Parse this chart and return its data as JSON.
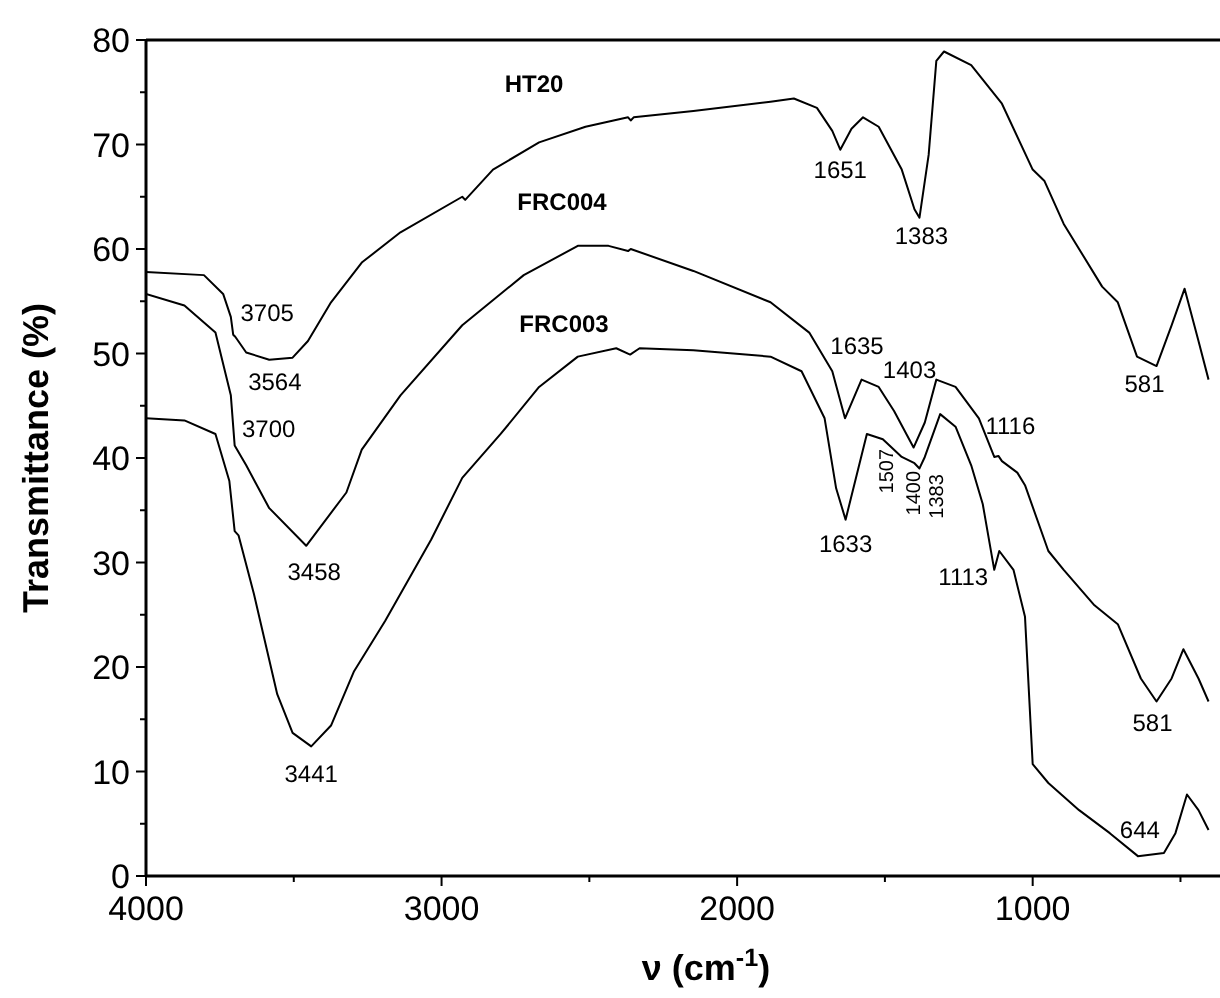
{
  "chart_data": {
    "type": "line",
    "xlabel": "ν (cm$^{-1}$)",
    "ylabel": "Transmittance  (%)",
    "xlim": [
      4000,
      373
    ],
    "ylim": [
      0,
      80
    ],
    "xticks": [
      4000,
      {
        "value": 3500,
        "label": null
      },
      3000,
      {
        "value": 2500,
        "label": null
      },
      2000,
      {
        "value": 1500,
        "label": null
      },
      1000,
      {
        "value": 500,
        "label": null
      }
    ],
    "yticks": [
      0,
      {
        "value": 5,
        "label": null
      },
      10,
      {
        "value": 15,
        "label": null
      },
      20,
      {
        "value": 25,
        "label": null
      },
      30,
      {
        "value": 35,
        "label": null
      },
      40,
      {
        "value": 45,
        "label": null
      },
      50,
      {
        "value": 55,
        "label": null
      },
      60,
      {
        "value": 65,
        "label": null
      },
      70,
      {
        "value": 75,
        "label": null
      },
      80
    ],
    "grid": false,
    "legend": false,
    "marker": "none",
    "line_style": "solid",
    "series": [
      {
        "name": "HT20",
        "color": "#000000",
        "x": [
          4000,
          3804,
          3739,
          3713,
          3705,
          3698,
          3661,
          3583,
          3504,
          3452,
          3374,
          3270,
          3139,
          2930,
          2920,
          2826,
          2670,
          2513,
          2369,
          2360,
          2350,
          2148,
          1887,
          1808,
          1730,
          1678,
          1651,
          1613,
          1574,
          1521,
          1443,
          1400,
          1383,
          1352,
          1326,
          1300,
          1208,
          1104,
          1000,
          960,
          895,
          765,
          712,
          647,
          581,
          530,
          486,
          439,
          405
        ],
        "values": [
          57.8,
          57.5,
          55.7,
          53.5,
          51.8,
          51.6,
          50.1,
          49.4,
          49.6,
          51.2,
          54.9,
          58.7,
          61.6,
          65,
          64.7,
          67.6,
          70.2,
          71.7,
          72.6,
          72.3,
          72.6,
          73.2,
          74.1,
          74.4,
          73.5,
          71.3,
          69.5,
          71.5,
          72.6,
          71.7,
          67.6,
          63.8,
          63,
          69,
          78,
          78.9,
          77.6,
          73.9,
          67.6,
          66.5,
          62.4,
          56.4,
          54.9,
          49.7,
          48.8,
          52.7,
          56.2,
          51.2,
          47.5
        ]
      },
      {
        "name": "FRC004",
        "color": "#000000",
        "x": [
          4000,
          3870,
          3765,
          3713,
          3700,
          3661,
          3583,
          3458,
          3322,
          3270,
          3139,
          2930,
          2722,
          2539,
          2435,
          2369,
          2360,
          2148,
          1887,
          1756,
          1678,
          1635,
          1579,
          1521,
          1469,
          1403,
          1365,
          1326,
          1261,
          1182,
          1130,
          1116,
          1104,
          1052,
          1026,
          947,
          895,
          791,
          712,
          634,
          581,
          530,
          490,
          439,
          405
        ],
        "values": [
          55.7,
          54.6,
          52,
          46,
          41.2,
          39.3,
          35.2,
          31.6,
          36.7,
          40.8,
          46,
          52.7,
          57.5,
          60.3,
          60.3,
          59.8,
          60,
          57.9,
          54.9,
          52,
          48.3,
          43.8,
          47.5,
          46.8,
          44.5,
          41,
          43.4,
          47.5,
          46.8,
          43.8,
          40.1,
          40.2,
          39.7,
          38.6,
          37.4,
          31.1,
          29.3,
          25.9,
          24.1,
          18.9,
          16.7,
          18.9,
          21.7,
          18.9,
          16.7
        ]
      },
      {
        "name": "FRC003",
        "color": "#000000",
        "x": [
          4000,
          3870,
          3765,
          3718,
          3700,
          3687,
          3635,
          3556,
          3504,
          3441,
          3374,
          3296,
          3191,
          3035,
          2930,
          2800,
          2670,
          2539,
          2409,
          2362,
          2330,
          2148,
          1887,
          1782,
          1704,
          1665,
          1633,
          1561,
          1507,
          1443,
          1400,
          1383,
          1365,
          1313,
          1261,
          1208,
          1169,
          1130,
          1113,
          1065,
          1026,
          1000,
          947,
          843,
          739,
          644,
          556,
          517,
          478,
          439,
          405
        ],
        "values": [
          43.8,
          43.6,
          42.3,
          37.8,
          33,
          32.6,
          27,
          17.4,
          13.7,
          12.4,
          14.4,
          19.6,
          24.4,
          32.2,
          38.1,
          42.3,
          46.8,
          49.7,
          50.5,
          49.9,
          50.5,
          50.3,
          49.7,
          48.3,
          43.8,
          37.1,
          34.1,
          42.3,
          41.8,
          40.1,
          39.5,
          39,
          40.1,
          44.2,
          43,
          39.3,
          35.6,
          29.3,
          31.1,
          29.3,
          24.8,
          10.7,
          8.9,
          6.3,
          4.1,
          1.9,
          2.2,
          4.1,
          7.8,
          6.3,
          4.4
        ]
      }
    ],
    "annotations": [
      {
        "text": "3705",
        "x": 3705,
        "y": 51.8
      },
      {
        "text": "3564",
        "x": 3564,
        "y": 49.4
      },
      {
        "text": "3700",
        "x": 3700,
        "y": 41.2
      },
      {
        "text": "3458",
        "x": 3458,
        "y": 31.6
      },
      {
        "text": "3441",
        "x": 3441,
        "y": 12.4
      },
      {
        "text": "1651",
        "x": 1651,
        "y": 69.5
      },
      {
        "text": "1383",
        "x": 1383,
        "y": 63
      },
      {
        "text": "581",
        "x": 581,
        "y": 48.8
      },
      {
        "text": "1635",
        "x": 1635,
        "y": 43.8
      },
      {
        "text": "1403",
        "x": 1403,
        "y": 41
      },
      {
        "text": "1116",
        "x": 1116,
        "y": 40.2
      },
      {
        "text": "1633",
        "x": 1633,
        "y": 34.1
      },
      {
        "text": "1507",
        "x": 1507,
        "y": 41.8
      },
      {
        "text": "1400",
        "x": 1400,
        "y": 39.5
      },
      {
        "text": "1383",
        "x": 1383,
        "y": 39
      },
      {
        "text": "1113",
        "x": 1113,
        "y": 31.1
      },
      {
        "text": "581",
        "x": 581,
        "y": 16.7
      },
      {
        "text": "644",
        "x": 644,
        "y": 1.9
      }
    ]
  }
}
